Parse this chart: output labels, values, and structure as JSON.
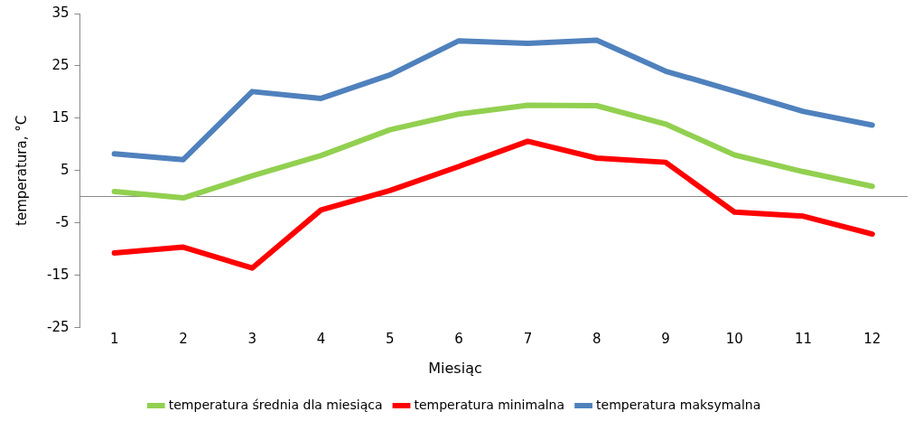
{
  "chart_data": {
    "type": "line",
    "xlabel": "Miesiąc",
    "ylabel": "temperatura, °C",
    "categories": [
      "1",
      "2",
      "3",
      "4",
      "5",
      "6",
      "7",
      "8",
      "9",
      "10",
      "11",
      "12"
    ],
    "series": [
      {
        "name": "temperatura średnia dla miesiąca",
        "color": "#92d050",
        "values": [
          1.0,
          -0.2,
          4.0,
          7.9,
          12.8,
          15.8,
          17.5,
          17.4,
          13.9,
          8.0,
          4.8,
          2.0
        ]
      },
      {
        "name": "temperatura minimalna",
        "color": "#ff0000",
        "values": [
          -10.7,
          -9.6,
          -13.6,
          -2.5,
          1.2,
          5.8,
          10.6,
          7.4,
          6.6,
          -2.9,
          -3.7,
          -7.1
        ]
      },
      {
        "name": "temperatura maksymalna",
        "color": "#4f81bd",
        "values": [
          8.2,
          7.1,
          20.1,
          18.8,
          23.3,
          29.8,
          29.3,
          29.9,
          24.0,
          20.2,
          16.3,
          13.7
        ]
      }
    ],
    "ylim": [
      -25,
      35
    ],
    "yticks": [
      -25,
      -15,
      -5,
      5,
      15,
      25,
      35
    ],
    "grid": false,
    "legend": "bottom",
    "marker": "none",
    "line_style": "solid"
  }
}
